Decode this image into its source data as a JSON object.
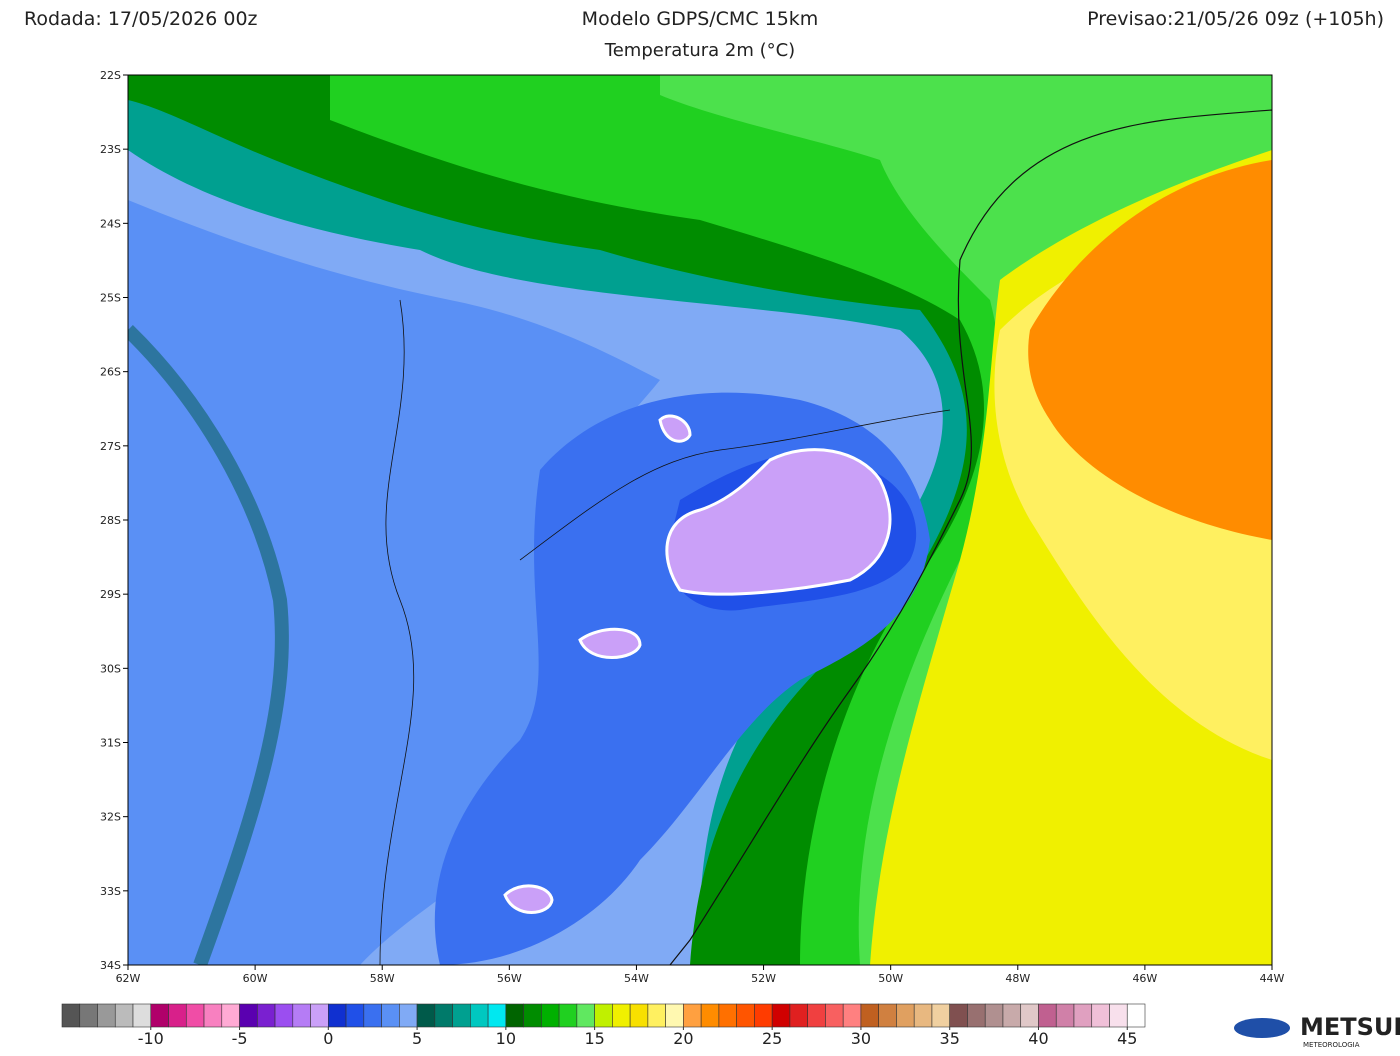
{
  "header": {
    "run": "Rodada: 17/05/2026 00z",
    "title": "Modelo GDPS/CMC 15km",
    "subtitle": "Temperatura 2m (°C)",
    "forecast": "Previsao:21/05/26 09z (+105h)"
  },
  "map": {
    "xlim": [
      -62,
      -44
    ],
    "ylim": [
      -34,
      -22
    ],
    "xticks": [
      {
        "value": -62,
        "label": "62W"
      },
      {
        "value": -60,
        "label": "60W"
      },
      {
        "value": -58,
        "label": "58W"
      },
      {
        "value": -56,
        "label": "56W"
      },
      {
        "value": -54,
        "label": "54W"
      },
      {
        "value": -52,
        "label": "52W"
      },
      {
        "value": -50,
        "label": "50W"
      },
      {
        "value": -48,
        "label": "48W"
      },
      {
        "value": -46,
        "label": "46W"
      },
      {
        "value": -44,
        "label": "44W"
      }
    ],
    "yticks": [
      {
        "value": -22,
        "label": "22S"
      },
      {
        "value": -23,
        "label": "23S"
      },
      {
        "value": -24,
        "label": "24S"
      },
      {
        "value": -25,
        "label": "25S"
      },
      {
        "value": -26,
        "label": "26S"
      },
      {
        "value": -27,
        "label": "27S"
      },
      {
        "value": -28,
        "label": "28S"
      },
      {
        "value": -29,
        "label": "29S"
      },
      {
        "value": -30,
        "label": "30S"
      },
      {
        "value": -31,
        "label": "31S"
      },
      {
        "value": -32,
        "label": "32S"
      },
      {
        "value": -33,
        "label": "33S"
      },
      {
        "value": -34,
        "label": "34S"
      }
    ]
  },
  "colorbar": {
    "range": [
      -15,
      46
    ],
    "colors": [
      "#555555",
      "#777777",
      "#999999",
      "#bbbbbb",
      "#dddddd",
      "#b0006a",
      "#d8208a",
      "#f04da6",
      "#f880c0",
      "#ffaad4",
      "#5a00b0",
      "#7a20d0",
      "#9b4ef0",
      "#b57cf5",
      "#caa0f8",
      "#1030d0",
      "#2050e8",
      "#3a70f0",
      "#5a90f5",
      "#80aaf5",
      "#005a4a",
      "#007a6a",
      "#00a090",
      "#00c8c0",
      "#00e8f0",
      "#006400",
      "#008c00",
      "#00b000",
      "#20d020",
      "#60e860",
      "#c0f000",
      "#f0f000",
      "#f8e000",
      "#fff060",
      "#fff8b0",
      "#ffa040",
      "#ff8c00",
      "#ff7000",
      "#ff5500",
      "#ff3c00",
      "#d00000",
      "#e02020",
      "#f04040",
      "#f86060",
      "#ff8080",
      "#c06020",
      "#d08040",
      "#e0a060",
      "#e8b880",
      "#f0d0a0",
      "#805050",
      "#987070",
      "#b09090",
      "#c8aaaa",
      "#e0c8c8",
      "#c06090",
      "#d080a8",
      "#e0a0c0",
      "#f0c0d8",
      "#f8e0ec",
      "#ffffff"
    ],
    "ticks": [
      -10,
      -5,
      0,
      5,
      10,
      15,
      20,
      25,
      30,
      35,
      40,
      45
    ]
  },
  "logo": {
    "name": "METSUL",
    "tagline": "METEOROLOGIA"
  }
}
